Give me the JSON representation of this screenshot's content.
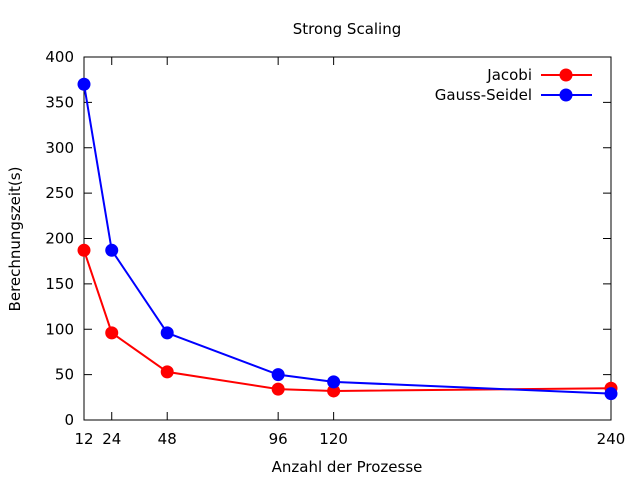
{
  "chart_data": {
    "type": "line",
    "title": "Strong Scaling",
    "xlabel": "Anzahl der Prozesse",
    "ylabel": "Berechnungszeit(s)",
    "xlim": [
      12,
      240
    ],
    "ylim": [
      0,
      400
    ],
    "xticks": [
      12,
      24,
      48,
      96,
      120,
      240
    ],
    "yticks": [
      0,
      50,
      100,
      150,
      200,
      250,
      300,
      350,
      400
    ],
    "grid": false,
    "legend_position": "top-right",
    "series": [
      {
        "name": "Jacobi",
        "color": "#ff0000",
        "marker": "circle",
        "x": [
          12,
          24,
          48,
          96,
          120,
          240
        ],
        "y": [
          187,
          96,
          53,
          34,
          32,
          35
        ]
      },
      {
        "name": "Gauss-Seidel",
        "color": "#0000ff",
        "marker": "circle",
        "x": [
          12,
          24,
          48,
          96,
          120,
          240
        ],
        "y": [
          370,
          187,
          96,
          50,
          42,
          29
        ]
      }
    ]
  }
}
